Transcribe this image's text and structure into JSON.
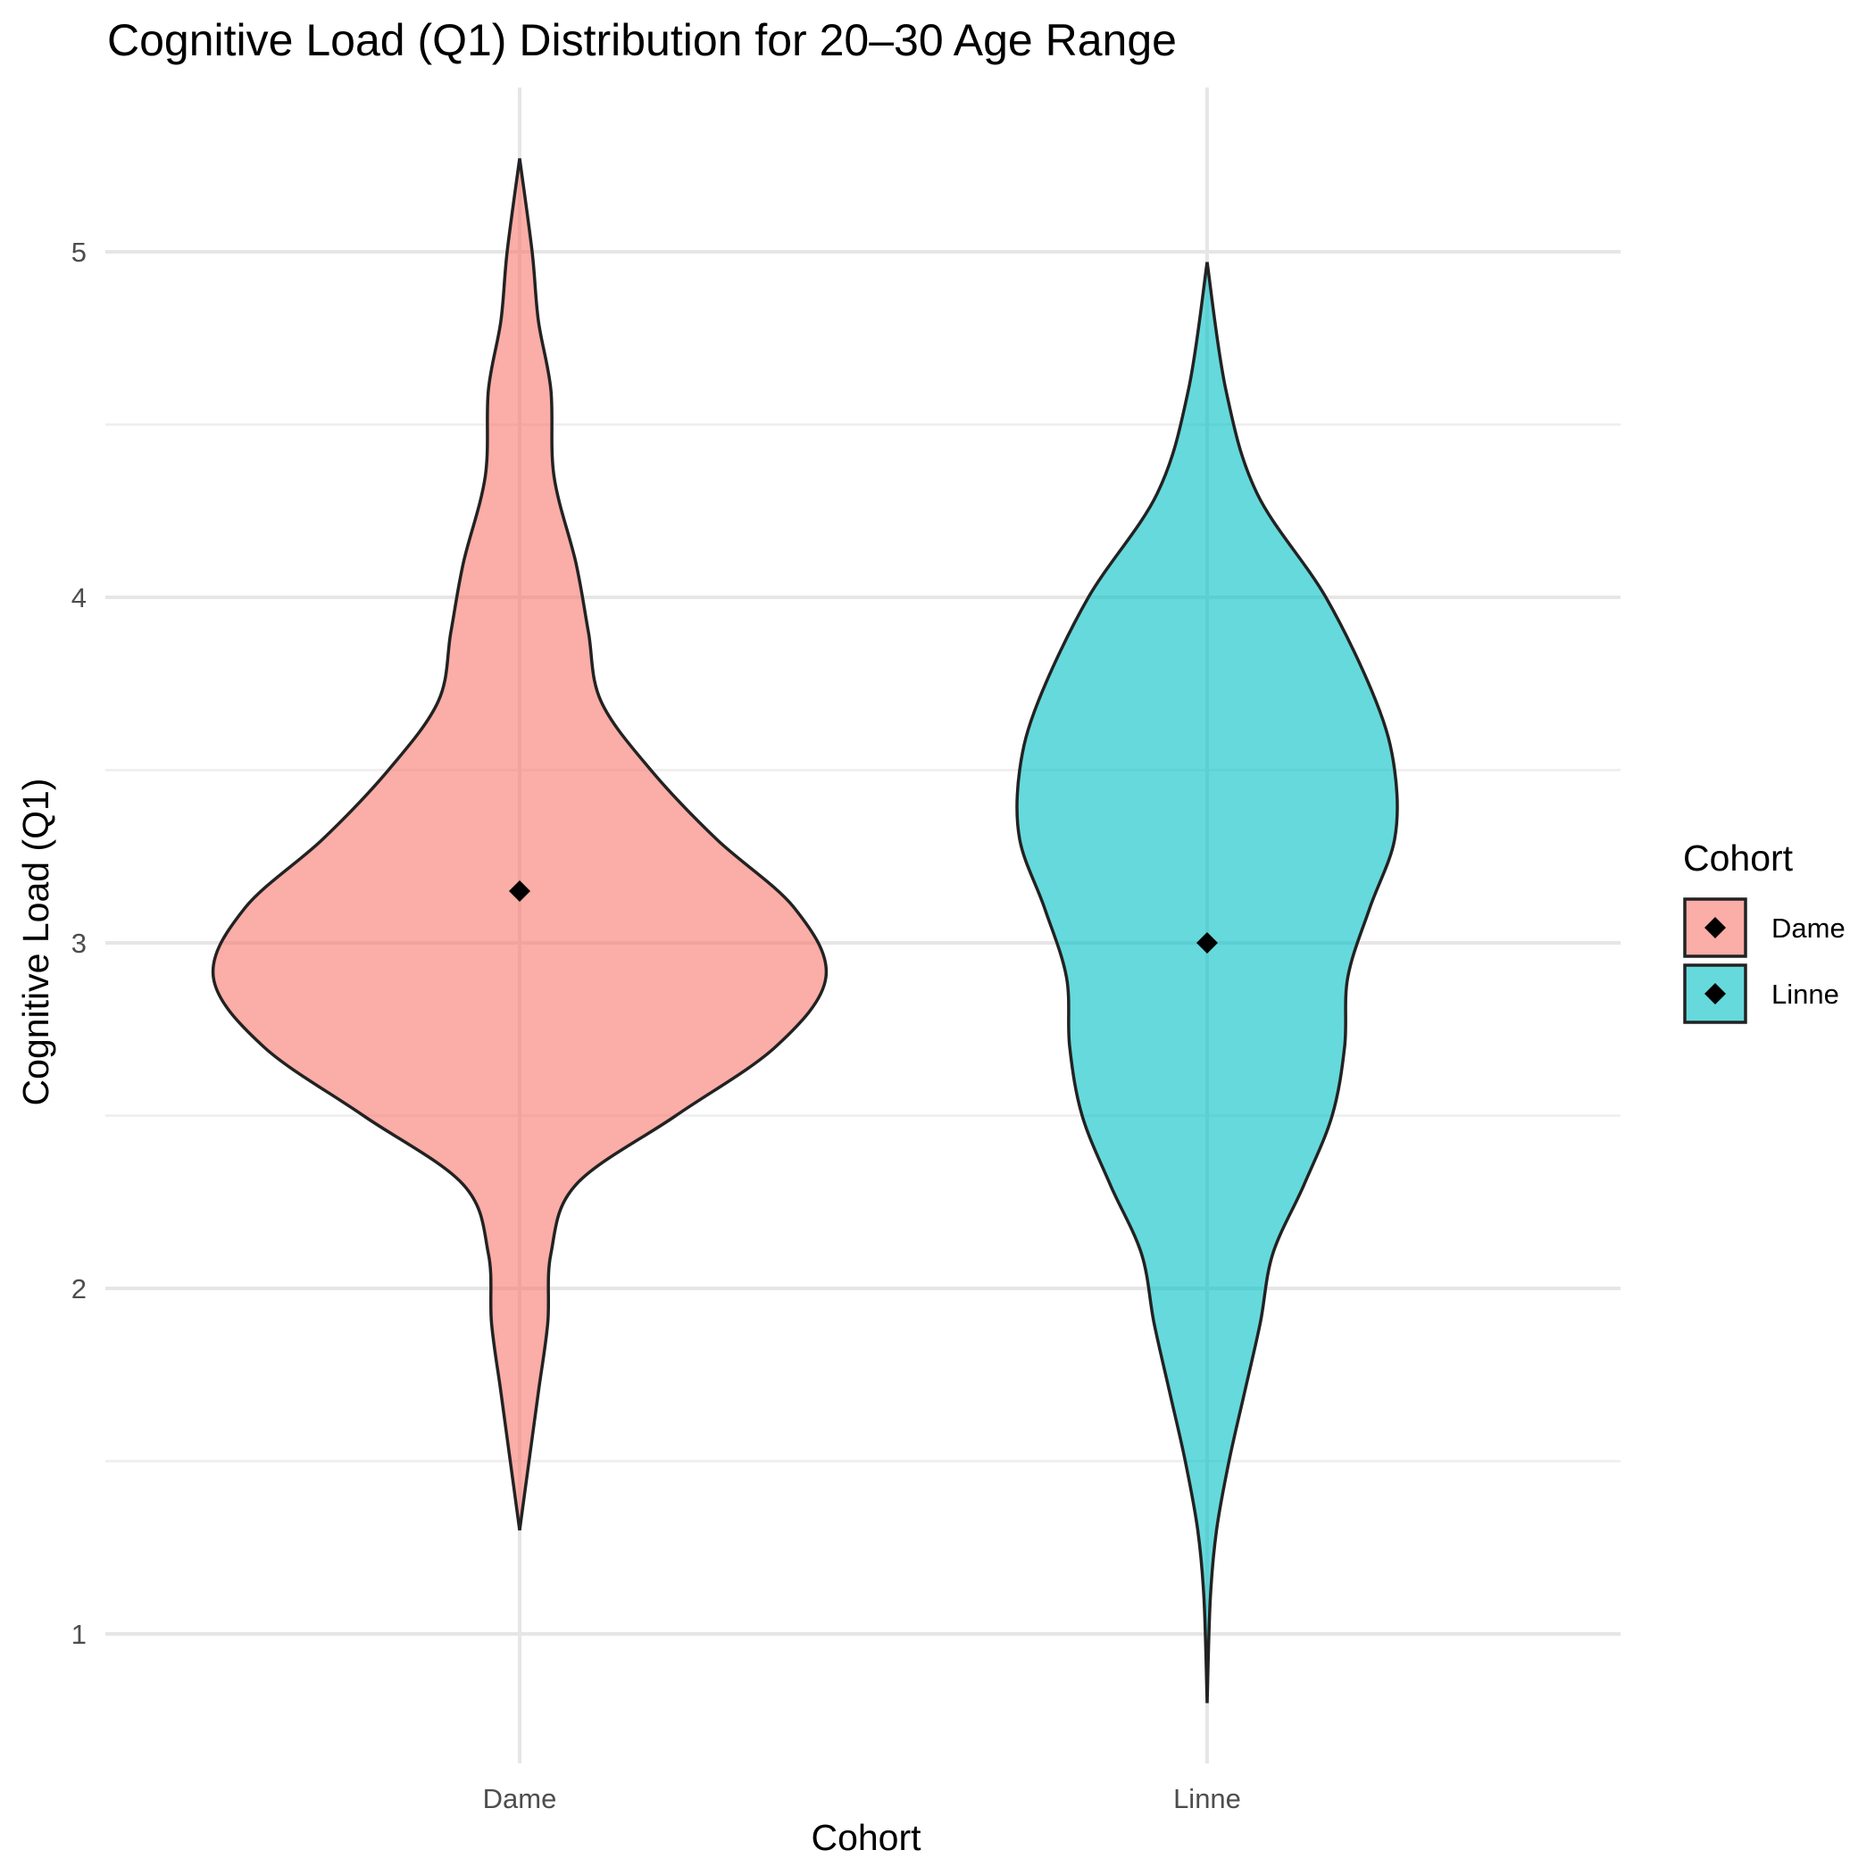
{
  "chart_data": {
    "type": "violin",
    "title": "Cognitive Load (Q1) Distribution for 20–30 Age Range",
    "xlabel": "Cohort",
    "ylabel": "Cognitive Load (Q1)",
    "ylim": [
      0.6,
      5.5
    ],
    "yticks": [
      1,
      2,
      3,
      4,
      5
    ],
    "grid": true,
    "legend": {
      "title": "Cohort",
      "placement": "right",
      "entries": [
        {
          "label": "Dame",
          "color": "#F8766D"
        },
        {
          "label": "Linne",
          "color": "#00BFC4"
        }
      ]
    },
    "categories": [
      "Dame",
      "Linne"
    ],
    "series": [
      {
        "name": "Dame",
        "color": "#F8766D",
        "mean": 3.15,
        "range": [
          1.3,
          5.27
        ],
        "profile": [
          [
            5.27,
            0.0
          ],
          [
            5.0,
            0.04
          ],
          [
            4.8,
            0.06
          ],
          [
            4.6,
            0.1
          ],
          [
            4.35,
            0.11
          ],
          [
            4.1,
            0.18
          ],
          [
            3.9,
            0.22
          ],
          [
            3.7,
            0.26
          ],
          [
            3.5,
            0.42
          ],
          [
            3.3,
            0.63
          ],
          [
            3.1,
            0.88
          ],
          [
            2.9,
            0.98
          ],
          [
            2.7,
            0.82
          ],
          [
            2.5,
            0.5
          ],
          [
            2.3,
            0.18
          ],
          [
            2.1,
            0.1
          ],
          [
            1.9,
            0.09
          ],
          [
            1.7,
            0.06
          ],
          [
            1.5,
            0.03
          ],
          [
            1.3,
            0.0
          ]
        ]
      },
      {
        "name": "Linne",
        "color": "#00BFC4",
        "mean": 3.0,
        "range": [
          0.8,
          4.97
        ],
        "profile": [
          [
            4.97,
            0.0
          ],
          [
            4.6,
            0.06
          ],
          [
            4.3,
            0.16
          ],
          [
            4.0,
            0.38
          ],
          [
            3.7,
            0.54
          ],
          [
            3.5,
            0.6
          ],
          [
            3.3,
            0.6
          ],
          [
            3.1,
            0.52
          ],
          [
            2.9,
            0.45
          ],
          [
            2.7,
            0.44
          ],
          [
            2.5,
            0.4
          ],
          [
            2.3,
            0.31
          ],
          [
            2.1,
            0.21
          ],
          [
            1.9,
            0.17
          ],
          [
            1.7,
            0.12
          ],
          [
            1.5,
            0.07
          ],
          [
            1.3,
            0.03
          ],
          [
            1.1,
            0.01
          ],
          [
            0.8,
            0.0
          ]
        ]
      }
    ]
  }
}
